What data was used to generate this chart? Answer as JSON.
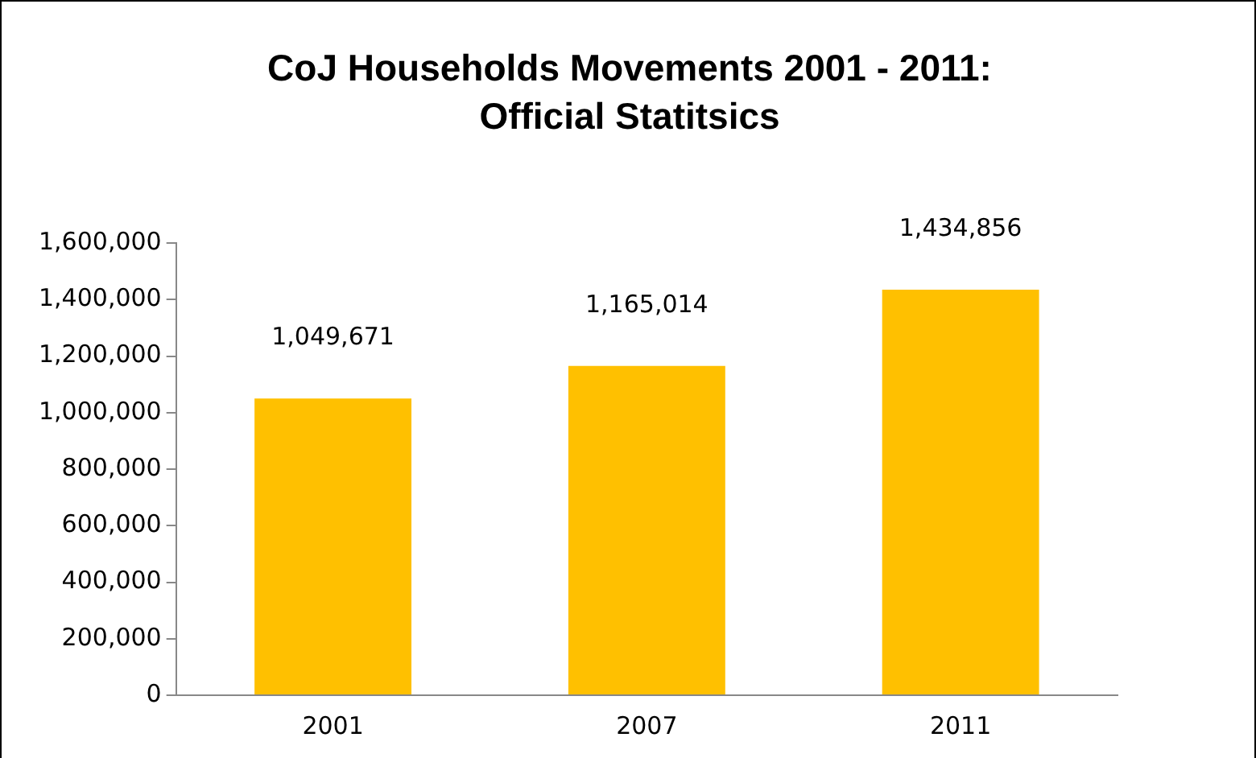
{
  "chart_data": {
    "type": "bar",
    "title": "CoJ Households Movements 2001 - 2011: Official Statitsics",
    "categories": [
      "2001",
      "2007",
      "2011"
    ],
    "values": [
      1049671,
      1165014,
      1434856
    ],
    "value_labels": [
      "1,049,671",
      "1,165,014",
      "1,434,856"
    ],
    "color": "#ffc000",
    "ylim": [
      0,
      1600000
    ],
    "yticks": [
      0,
      {
        "value": 200000,
        "label": "200,000"
      },
      {
        "value": 400000,
        "label": "400,000"
      },
      {
        "value": 600000,
        "label": "600,000"
      },
      {
        "value": 800000,
        "label": "800,000"
      },
      {
        "value": 1000000,
        "label": "1,000,000"
      },
      {
        "value": 1200000,
        "label": "1,200,000"
      },
      {
        "value": 1400000,
        "label": "1,400,000"
      },
      {
        "value": 1600000,
        "label": "1,600,000"
      }
    ],
    "grid": false,
    "legend": false
  }
}
